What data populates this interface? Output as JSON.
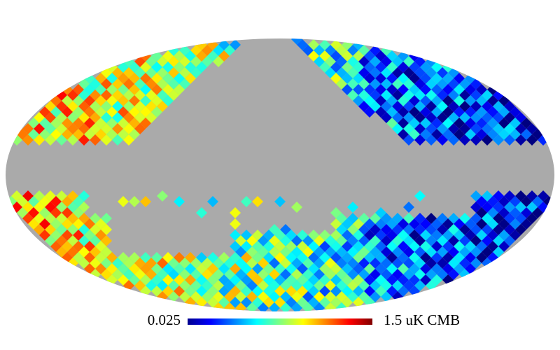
{
  "colorbar": {
    "min_label": "0.025",
    "max_label": "1.5 uK CMB"
  }
}
